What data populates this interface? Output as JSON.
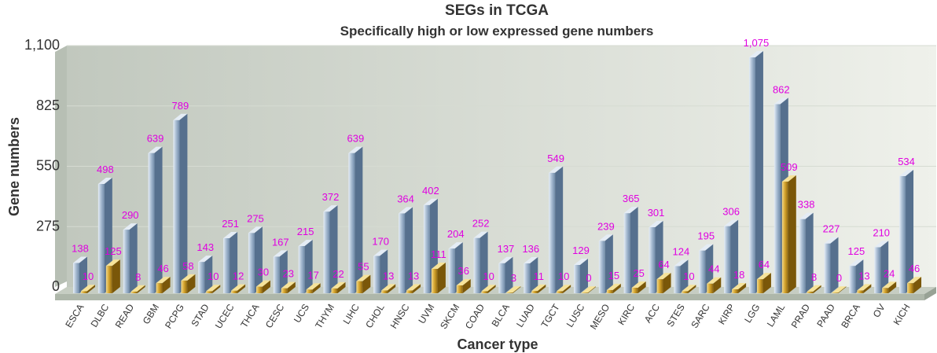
{
  "chart_data": {
    "type": "bar",
    "title": "SEGs in TCGA",
    "subtitle": "Specifically high or low expressed gene numbers",
    "xlabel": "Cancer type",
    "ylabel": "Gene numbers",
    "ylim": [
      0,
      1100
    ],
    "yticks": [
      "0",
      "275",
      "550",
      "825",
      "1,100"
    ],
    "grid": true,
    "legend": "none",
    "categories": [
      "ESCA",
      "DLBC",
      "READ",
      "GBM",
      "PCPG",
      "STAD",
      "UCEC",
      "THCA",
      "CESC",
      "UCS",
      "THYM",
      "LIHC",
      "CHOL",
      "HNSC",
      "UVM",
      "SKCM",
      "COAD",
      "BLCA",
      "LUAD",
      "TGCT",
      "LUSC",
      "MESO",
      "KIRC",
      "ACC",
      "STES",
      "SARC",
      "KIRP",
      "LGG",
      "LAML",
      "PRAD",
      "PAAD",
      "BRCA",
      "OV",
      "KICH"
    ],
    "series": [
      {
        "values": [
          138,
          498,
          290,
          639,
          789,
          143,
          251,
          275,
          167,
          215,
          372,
          639,
          170,
          364,
          402,
          204,
          252,
          137,
          136,
          549,
          129,
          239,
          365,
          301,
          124,
          195,
          306,
          1075,
          862,
          338,
          227,
          125,
          210,
          534
        ],
        "labels": [
          "138",
          "498",
          "290",
          "639",
          "789",
          "143",
          "251",
          "275",
          "167",
          "215",
          "372",
          "639",
          "170",
          "364",
          "402",
          "204",
          "252",
          "137",
          "136",
          "549",
          "129",
          "239",
          "365",
          "301",
          "124",
          "195",
          "306",
          "1,075",
          "862",
          "338",
          "227",
          "125",
          "210",
          "534"
        ],
        "color": "#8fa9c6"
      },
      {
        "values": [
          10,
          125,
          8,
          46,
          58,
          10,
          12,
          30,
          23,
          17,
          22,
          55,
          13,
          13,
          111,
          36,
          10,
          3,
          11,
          10,
          0,
          15,
          25,
          64,
          10,
          44,
          18,
          64,
          509,
          8,
          0,
          13,
          24,
          46
        ],
        "labels": [
          "10",
          "125",
          "8",
          "46",
          "58",
          "10",
          "12",
          "30",
          "23",
          "17",
          "22",
          "55",
          "13",
          "13",
          "111",
          "36",
          "10",
          "3",
          "11",
          "10",
          "0",
          "15",
          "25",
          "64",
          "10",
          "44",
          "18",
          "64",
          "509",
          "8",
          "0",
          "13",
          "24",
          "46"
        ],
        "color": "#d4a42a"
      }
    ]
  },
  "colors": {
    "label": "#e000e0",
    "axis_text": "#333333",
    "plot_bg_left": "#c3cac0",
    "plot_bg_right": "#eef0ea"
  }
}
